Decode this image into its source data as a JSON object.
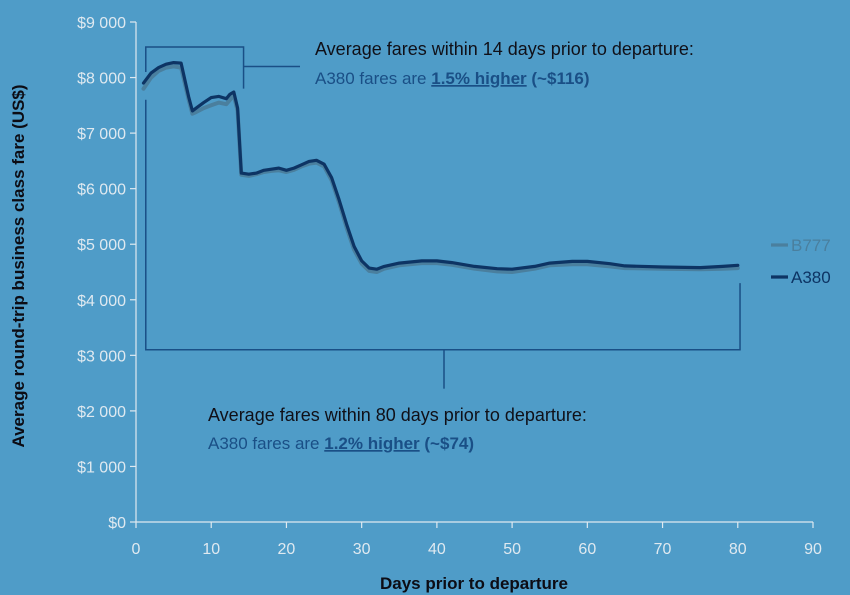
{
  "chart_data": {
    "type": "line",
    "xlabel": "Days prior to departure",
    "ylabel": "Average round-trip business class fare (US$)",
    "xlim": [
      0,
      90
    ],
    "ylim": [
      0,
      9000
    ],
    "x_ticks": [
      "0",
      "10",
      "20",
      "30",
      "40",
      "50",
      "60",
      "70",
      "80",
      "90"
    ],
    "y_ticks": [
      "$0",
      "$1 000",
      "$2 000",
      "$3 000",
      "$4 000",
      "$5 000",
      "$6 000",
      "$7 000",
      "$8 000",
      "$9 000"
    ],
    "grid": false,
    "legend_position": "right",
    "series": [
      {
        "name": "B777",
        "color": "#4a7f9e",
        "points": [
          [
            1,
            7800
          ],
          [
            2,
            8000
          ],
          [
            3,
            8120
          ],
          [
            4,
            8180
          ],
          [
            5,
            8200
          ],
          [
            6,
            8180
          ],
          [
            7,
            7600
          ],
          [
            7.5,
            7350
          ],
          [
            8,
            7380
          ],
          [
            9,
            7450
          ],
          [
            10,
            7500
          ],
          [
            11,
            7550
          ],
          [
            12,
            7520
          ],
          [
            12.5,
            7600
          ],
          [
            13,
            7680
          ],
          [
            13.5,
            7400
          ],
          [
            14,
            6250
          ],
          [
            15,
            6230
          ],
          [
            16,
            6260
          ],
          [
            17,
            6300
          ],
          [
            18,
            6320
          ],
          [
            19,
            6330
          ],
          [
            20,
            6300
          ],
          [
            21,
            6340
          ],
          [
            22,
            6400
          ],
          [
            23,
            6450
          ],
          [
            24,
            6470
          ],
          [
            25,
            6400
          ],
          [
            26,
            6150
          ],
          [
            27,
            5750
          ],
          [
            28,
            5300
          ],
          [
            29,
            4900
          ],
          [
            30,
            4650
          ],
          [
            31,
            4520
          ],
          [
            32,
            4500
          ],
          [
            33,
            4560
          ],
          [
            35,
            4620
          ],
          [
            38,
            4660
          ],
          [
            40,
            4660
          ],
          [
            42,
            4630
          ],
          [
            45,
            4560
          ],
          [
            48,
            4510
          ],
          [
            50,
            4500
          ],
          [
            53,
            4560
          ],
          [
            55,
            4620
          ],
          [
            58,
            4640
          ],
          [
            60,
            4640
          ],
          [
            63,
            4600
          ],
          [
            65,
            4570
          ],
          [
            70,
            4560
          ],
          [
            75,
            4550
          ],
          [
            78,
            4560
          ],
          [
            80,
            4570
          ]
        ]
      },
      {
        "name": "A380",
        "color": "#0d3464",
        "points": [
          [
            1,
            7900
          ],
          [
            2,
            8080
          ],
          [
            3,
            8180
          ],
          [
            4,
            8240
          ],
          [
            5,
            8270
          ],
          [
            6,
            8260
          ],
          [
            7,
            7650
          ],
          [
            7.5,
            7400
          ],
          [
            8,
            7450
          ],
          [
            9,
            7550
          ],
          [
            10,
            7640
          ],
          [
            11,
            7660
          ],
          [
            12,
            7620
          ],
          [
            12.5,
            7700
          ],
          [
            13,
            7740
          ],
          [
            13.5,
            7450
          ],
          [
            14,
            6280
          ],
          [
            15,
            6260
          ],
          [
            16,
            6280
          ],
          [
            17,
            6330
          ],
          [
            18,
            6350
          ],
          [
            19,
            6370
          ],
          [
            20,
            6330
          ],
          [
            21,
            6370
          ],
          [
            22,
            6430
          ],
          [
            23,
            6490
          ],
          [
            24,
            6510
          ],
          [
            25,
            6440
          ],
          [
            26,
            6200
          ],
          [
            27,
            5800
          ],
          [
            28,
            5360
          ],
          [
            29,
            4960
          ],
          [
            30,
            4700
          ],
          [
            31,
            4570
          ],
          [
            32,
            4550
          ],
          [
            33,
            4600
          ],
          [
            35,
            4660
          ],
          [
            38,
            4700
          ],
          [
            40,
            4700
          ],
          [
            42,
            4670
          ],
          [
            45,
            4600
          ],
          [
            48,
            4560
          ],
          [
            50,
            4550
          ],
          [
            53,
            4600
          ],
          [
            55,
            4660
          ],
          [
            58,
            4690
          ],
          [
            60,
            4690
          ],
          [
            63,
            4650
          ],
          [
            65,
            4610
          ],
          [
            70,
            4590
          ],
          [
            75,
            4580
          ],
          [
            78,
            4600
          ],
          [
            80,
            4620
          ]
        ]
      }
    ],
    "annotations": [
      {
        "line1": "Average fares within 14 days prior to departure:",
        "line2_prefix": "A380 fares are ",
        "line2_highlight": "1.5% higher",
        "line2_suffix": " (~$116)"
      },
      {
        "line1": "Average fares within 80 days prior to departure:",
        "line2_prefix": "A380 fares are ",
        "line2_highlight": "1.2% higher",
        "line2_suffix": " (~$74)"
      }
    ]
  }
}
